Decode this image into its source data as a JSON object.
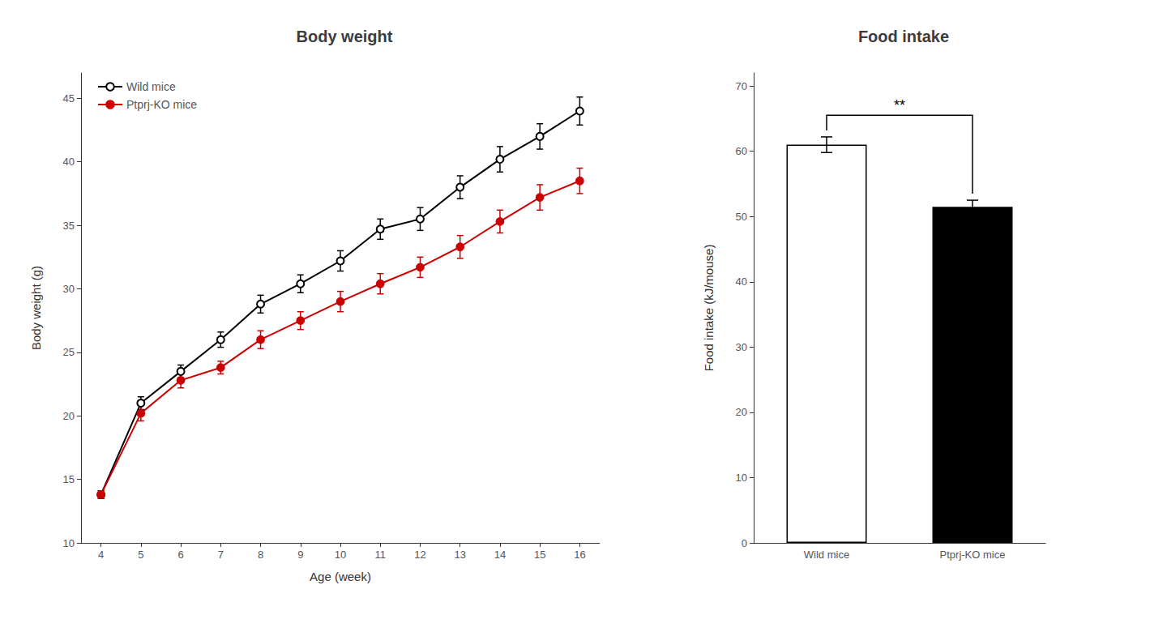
{
  "chart_data": [
    {
      "type": "line",
      "title": "Body weight",
      "x_label": "Age (week)",
      "y_label": "Body weight (g)",
      "x": [
        4,
        5,
        6,
        7,
        8,
        9,
        10,
        11,
        12,
        13,
        14,
        15,
        16
      ],
      "xlim": [
        3.5,
        16.5
      ],
      "xticks": [
        4,
        5,
        6,
        7,
        8,
        9,
        10,
        11,
        12,
        13,
        14,
        15,
        16
      ],
      "ylim": [
        10,
        47
      ],
      "yticks": [
        10,
        15,
        20,
        25,
        30,
        35,
        40,
        45
      ],
      "grid": false,
      "legend": "upper left",
      "series": [
        {
          "name": "Wild mice",
          "color": "#000000",
          "marker": "open_circle",
          "values": [
            13.8,
            21.0,
            23.5,
            26.0,
            28.8,
            30.4,
            32.2,
            34.7,
            35.5,
            38.0,
            40.2,
            42.0,
            44.0
          ],
          "errors": [
            0.3,
            0.5,
            0.5,
            0.6,
            0.7,
            0.7,
            0.8,
            0.8,
            0.9,
            0.9,
            1.0,
            1.0,
            1.1
          ]
        },
        {
          "name": "Ptprj-KO mice",
          "color": "#cc0000",
          "marker": "circle",
          "values": [
            13.8,
            20.2,
            22.8,
            23.8,
            26.0,
            27.5,
            29.0,
            30.4,
            31.7,
            33.3,
            35.3,
            37.2,
            38.5
          ],
          "errors": [
            0.3,
            0.6,
            0.6,
            0.5,
            0.7,
            0.7,
            0.8,
            0.8,
            0.8,
            0.9,
            0.9,
            1.0,
            1.0
          ]
        }
      ]
    },
    {
      "type": "bar",
      "title": "Food intake",
      "y_label": "Food intake (kJ/mouse)",
      "categories": [
        "Wild mice",
        "Ptprj-KO mice"
      ],
      "values": [
        61.0,
        51.5
      ],
      "errors": [
        1.2,
        1.0
      ],
      "colors": [
        "#ffffff",
        "#000000"
      ],
      "ylim": [
        0,
        72
      ],
      "yticks": [
        0,
        10,
        20,
        30,
        40,
        50,
        60,
        70
      ],
      "grid": false,
      "annotations": [
        {
          "text": "**",
          "y": 65.5,
          "between": [
            "Wild mice",
            "Ptprj-KO mice"
          ]
        }
      ]
    }
  ]
}
